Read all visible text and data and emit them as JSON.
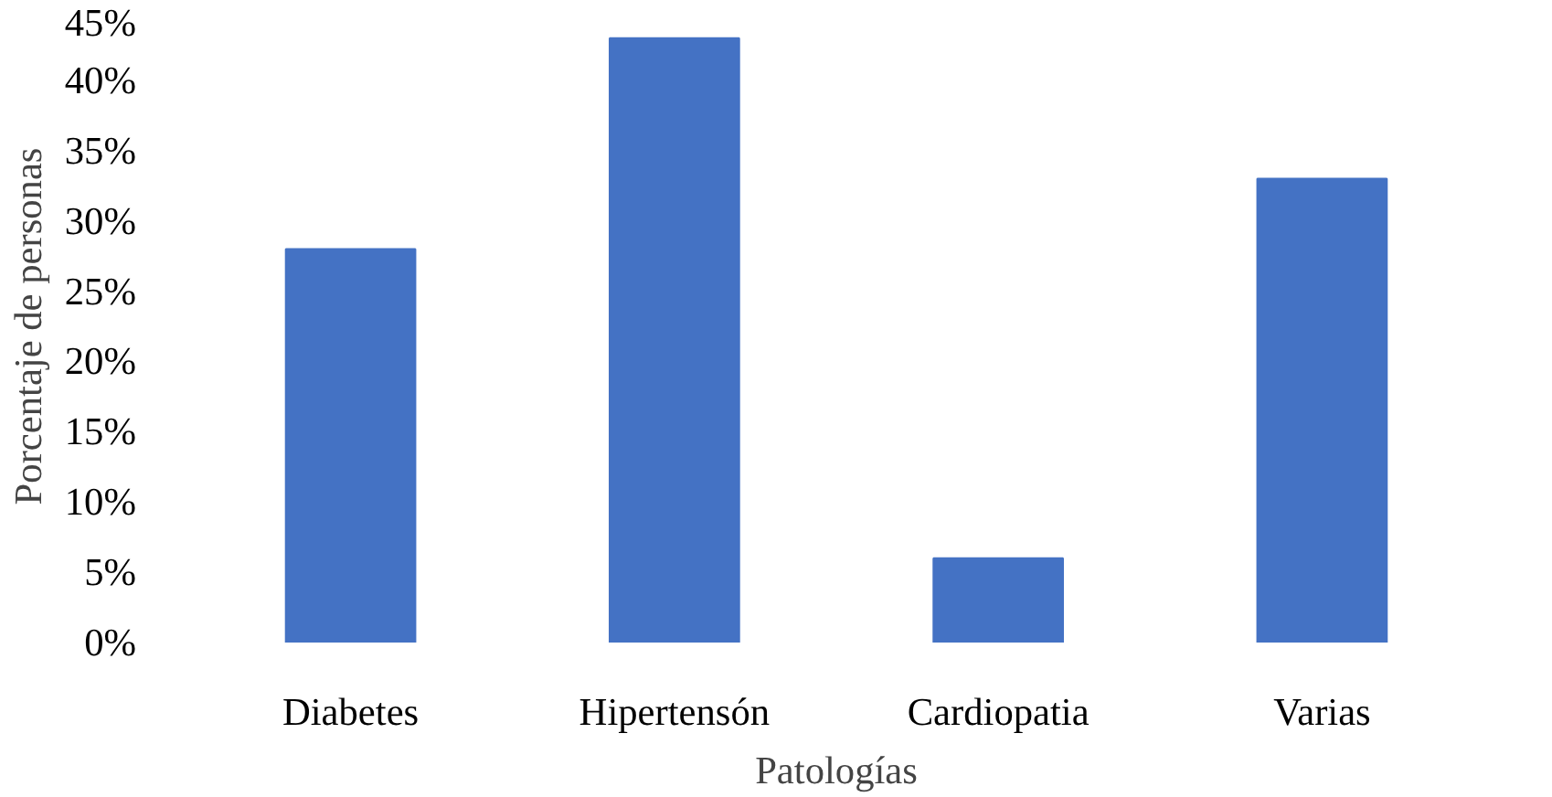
{
  "chart_data": {
    "type": "bar",
    "xlabel": "Patologías",
    "ylabel": "Porcentaje de personas",
    "categories": [
      "Diabetes",
      "Hipertensón",
      "Cardiopatia",
      "Varias"
    ],
    "values": [
      28,
      43,
      6,
      33
    ],
    "color": "#4472c4",
    "ylim": [
      0,
      45
    ],
    "yticks": [
      {
        "value": 0,
        "label": "0%"
      },
      {
        "value": 5,
        "label": "5%"
      },
      {
        "value": 10,
        "label": "10%"
      },
      {
        "value": 15,
        "label": "15%"
      },
      {
        "value": 20,
        "label": "20%"
      },
      {
        "value": 25,
        "label": "25%"
      },
      {
        "value": 30,
        "label": "30%"
      },
      {
        "value": 35,
        "label": "35%"
      },
      {
        "value": 40,
        "label": "40%"
      },
      {
        "value": 45,
        "label": "45%"
      }
    ],
    "grid": false
  }
}
